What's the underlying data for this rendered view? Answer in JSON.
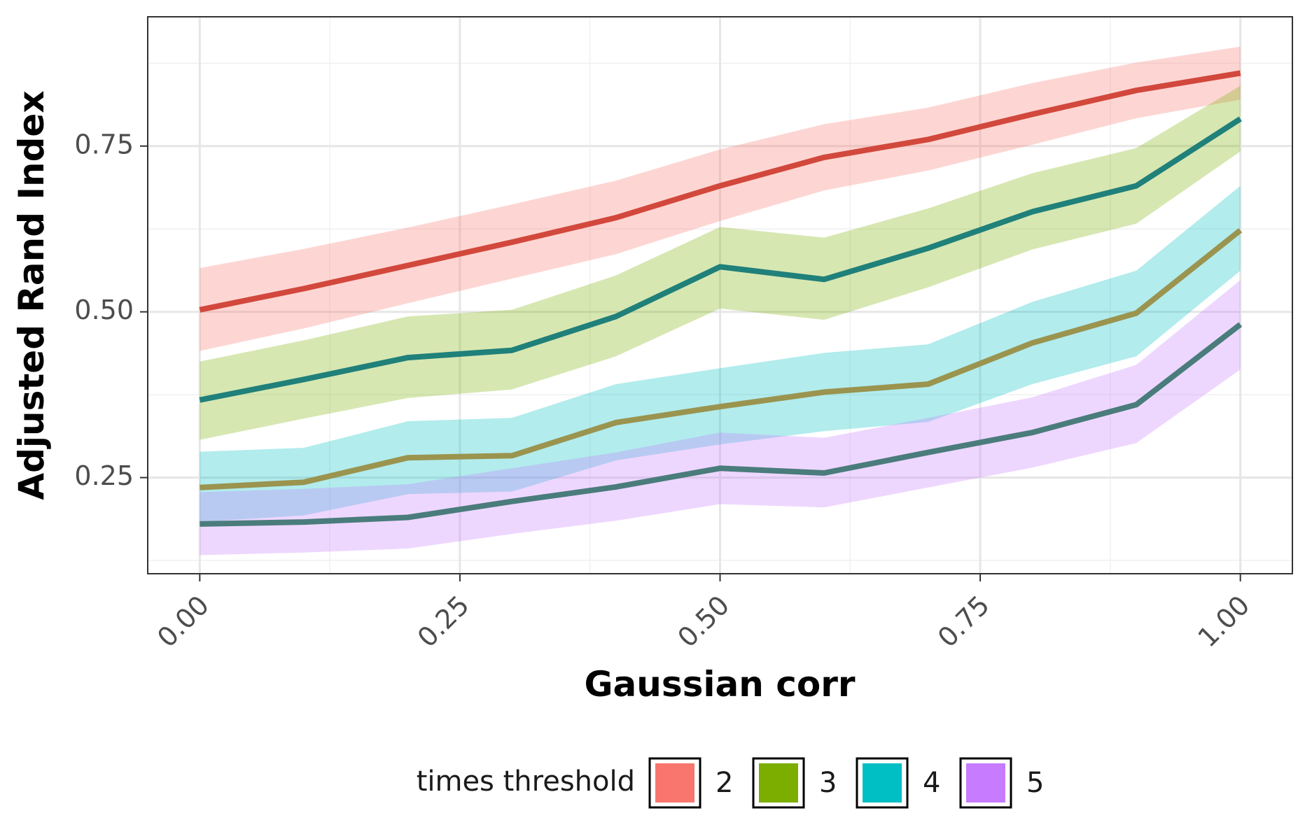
{
  "chart_data": {
    "type": "line",
    "xlabel": "Gaussian corr",
    "ylabel": "Adjusted Rand Index",
    "xlim": [
      -0.05,
      1.05
    ],
    "ylim": [
      0.105,
      0.945
    ],
    "x_ticks": [
      0.0,
      0.25,
      0.5,
      0.75,
      1.0
    ],
    "x_tick_labels": [
      "0.00",
      "0.25",
      "0.50",
      "0.75",
      "1.00"
    ],
    "y_ticks": [
      0.25,
      0.5,
      0.75
    ],
    "y_tick_labels": [
      "0.25",
      "0.50",
      "0.75"
    ],
    "grid": true,
    "legend": {
      "title": "times threshold",
      "position": "bottom"
    },
    "x": [
      0.0,
      0.1,
      0.2,
      0.3,
      0.4,
      0.5,
      0.6,
      0.7,
      0.8,
      0.9,
      1.0
    ],
    "series": [
      {
        "name": "2",
        "fill_color": "#F8766D",
        "line_color": "#D2483C",
        "values": [
          0.503,
          0.535,
          0.57,
          0.605,
          0.642,
          0.69,
          0.733,
          0.76,
          0.798,
          0.834,
          0.86
        ],
        "lower": [
          0.441,
          0.475,
          0.513,
          0.55,
          0.587,
          0.637,
          0.683,
          0.713,
          0.752,
          0.792,
          0.82
        ],
        "upper": [
          0.566,
          0.595,
          0.627,
          0.662,
          0.698,
          0.745,
          0.783,
          0.808,
          0.845,
          0.876,
          0.9
        ]
      },
      {
        "name": "3",
        "fill_color": "#7CAE00",
        "line_color": "#20807A",
        "values": [
          0.367,
          0.398,
          0.431,
          0.442,
          0.493,
          0.568,
          0.549,
          0.596,
          0.651,
          0.69,
          0.791
        ],
        "lower": [
          0.307,
          0.339,
          0.37,
          0.383,
          0.433,
          0.505,
          0.488,
          0.537,
          0.594,
          0.633,
          0.742
        ],
        "upper": [
          0.425,
          0.457,
          0.493,
          0.503,
          0.555,
          0.628,
          0.612,
          0.656,
          0.709,
          0.747,
          0.841
        ]
      },
      {
        "name": "4",
        "fill_color": "#00BFC4",
        "line_color": "#9A944F",
        "values": [
          0.235,
          0.243,
          0.28,
          0.283,
          0.333,
          0.357,
          0.379,
          0.391,
          0.453,
          0.498,
          0.623
        ],
        "lower": [
          0.183,
          0.193,
          0.225,
          0.229,
          0.276,
          0.3,
          0.32,
          0.334,
          0.391,
          0.433,
          0.562
        ],
        "upper": [
          0.289,
          0.295,
          0.335,
          0.34,
          0.391,
          0.415,
          0.438,
          0.451,
          0.515,
          0.562,
          0.69
        ]
      },
      {
        "name": "5",
        "fill_color": "#C77CFF",
        "line_color": "#4A7C7C",
        "values": [
          0.18,
          0.183,
          0.19,
          0.214,
          0.236,
          0.264,
          0.257,
          0.288,
          0.318,
          0.36,
          0.481
        ],
        "lower": [
          0.133,
          0.137,
          0.143,
          0.165,
          0.185,
          0.21,
          0.205,
          0.235,
          0.265,
          0.302,
          0.413
        ],
        "upper": [
          0.228,
          0.233,
          0.24,
          0.264,
          0.288,
          0.318,
          0.31,
          0.34,
          0.371,
          0.42,
          0.548
        ]
      }
    ]
  }
}
